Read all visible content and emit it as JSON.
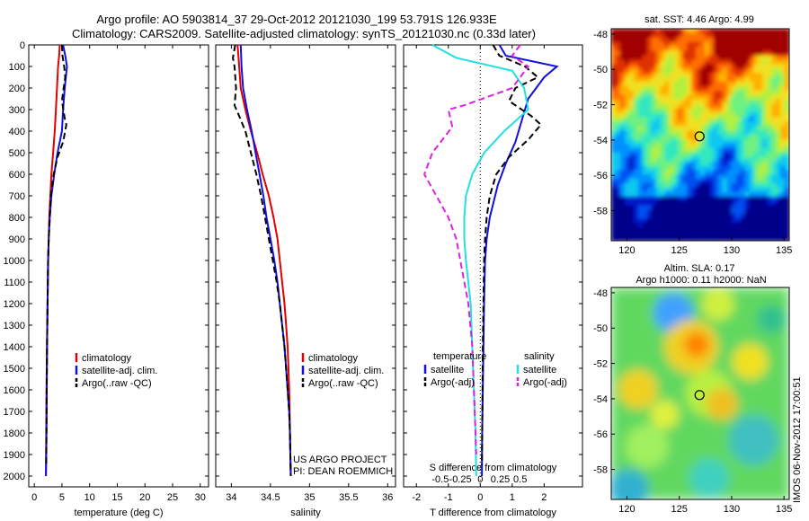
{
  "figure": {
    "title_line1": "Argo profile: AO 5903814_37 29-Oct-2012 20121030_199 53.791S 126.933E",
    "title_line2": "Climatology: CARS2009. Satellite-adjusted climatology: synTS_20121030.nc (0.33d later)",
    "side_label": "IMOS 06-Nov-2012 17:00:51",
    "project_line1": "US ARGO PROJECT",
    "project_line2": "PI: DEAN ROEMMICH"
  },
  "colors": {
    "climatology": "#e00000",
    "satellite": "#1010e0",
    "argo": "#000000",
    "sal_satellite": "#20e0e0",
    "sal_argo": "#e020e0"
  },
  "chart_data": [
    {
      "id": "temperature",
      "type": "line",
      "xlabel": "temperature (deg C)",
      "ylabel": "",
      "xlim": [
        -1,
        31.5
      ],
      "xticks": [
        0,
        5,
        10,
        15,
        20,
        25,
        30
      ],
      "ylim": [
        0,
        2050
      ],
      "yticks": [
        0,
        100,
        200,
        300,
        400,
        500,
        600,
        700,
        800,
        900,
        1000,
        1100,
        1200,
        1300,
        1400,
        1500,
        1600,
        1700,
        1800,
        1900,
        2000
      ],
      "legend": [
        "climatology",
        "satellite-adj. clim.",
        "Argo(..raw -QC)"
      ],
      "series": [
        {
          "name": "climatology",
          "style": "solid",
          "points": [
            [
              4.6,
              0
            ],
            [
              4.5,
              50
            ],
            [
              4.3,
              100
            ],
            [
              4.1,
              200
            ],
            [
              3.9,
              300
            ],
            [
              3.7,
              400
            ],
            [
              3.4,
              500
            ],
            [
              3.1,
              600
            ],
            [
              2.9,
              700
            ],
            [
              2.7,
              800
            ],
            [
              2.6,
              900
            ],
            [
              2.5,
              1000
            ],
            [
              2.4,
              1200
            ],
            [
              2.3,
              1400
            ],
            [
              2.2,
              1600
            ],
            [
              2.15,
              1800
            ],
            [
              2.1,
              2000
            ]
          ]
        },
        {
          "name": "satellite-adj. clim.",
          "style": "solid",
          "points": [
            [
              5.2,
              0
            ],
            [
              5.6,
              50
            ],
            [
              5.9,
              100
            ],
            [
              5.5,
              200
            ],
            [
              5.2,
              300
            ],
            [
              5.0,
              400
            ],
            [
              4.2,
              500
            ],
            [
              3.6,
              600
            ],
            [
              3.1,
              700
            ],
            [
              2.8,
              800
            ],
            [
              2.6,
              900
            ],
            [
              2.5,
              1000
            ],
            [
              2.4,
              1200
            ],
            [
              2.3,
              1400
            ],
            [
              2.25,
              1600
            ],
            [
              2.2,
              1800
            ],
            [
              2.1,
              2000
            ]
          ]
        },
        {
          "name": "Argo(..raw -QC)",
          "style": "dashed",
          "points": [
            [
              5.0,
              0
            ],
            [
              5.1,
              50
            ],
            [
              5.4,
              100
            ],
            [
              5.6,
              150
            ],
            [
              5.3,
              200
            ],
            [
              5.0,
              260
            ],
            [
              5.5,
              340
            ],
            [
              5.8,
              370
            ],
            [
              5.2,
              450
            ],
            [
              4.2,
              520
            ],
            [
              3.5,
              600
            ],
            [
              3.0,
              700
            ],
            [
              2.8,
              800
            ],
            [
              2.6,
              900
            ],
            [
              2.5,
              1000
            ],
            [
              2.4,
              1200
            ],
            [
              2.3,
              1400
            ],
            [
              2.25,
              1600
            ],
            [
              2.2,
              1800
            ],
            [
              2.15,
              1950
            ]
          ]
        }
      ]
    },
    {
      "id": "salinity",
      "type": "line",
      "xlabel": "salinity",
      "ylabel": "",
      "xlim": [
        33.8,
        36.1
      ],
      "xticks": [
        34,
        34.5,
        35,
        35.5,
        36
      ],
      "xtick_labels": [
        "34",
        "34.5",
        "35",
        "35.5",
        "36"
      ],
      "ylim": [
        0,
        2050
      ],
      "legend": [
        "climatology",
        "satellite-adj. clim.",
        "Argo(..raw -QC)"
      ],
      "series": [
        {
          "name": "climatology",
          "style": "solid",
          "points": [
            [
              34.08,
              0
            ],
            [
              34.1,
              100
            ],
            [
              34.12,
              200
            ],
            [
              34.18,
              300
            ],
            [
              34.25,
              400
            ],
            [
              34.33,
              500
            ],
            [
              34.4,
              600
            ],
            [
              34.48,
              700
            ],
            [
              34.54,
              800
            ],
            [
              34.59,
              900
            ],
            [
              34.62,
              1000
            ],
            [
              34.65,
              1100
            ],
            [
              34.68,
              1200
            ],
            [
              34.7,
              1300
            ],
            [
              34.72,
              1400
            ],
            [
              34.73,
              1500
            ],
            [
              34.74,
              1600
            ],
            [
              34.745,
              1700
            ],
            [
              34.75,
              1800
            ],
            [
              34.755,
              1900
            ],
            [
              34.76,
              2000
            ]
          ]
        },
        {
          "name": "satellite-adj. clim.",
          "style": "solid",
          "points": [
            [
              34.12,
              0
            ],
            [
              34.13,
              100
            ],
            [
              34.15,
              200
            ],
            [
              34.2,
              300
            ],
            [
              34.26,
              400
            ],
            [
              34.31,
              500
            ],
            [
              34.36,
              600
            ],
            [
              34.41,
              700
            ],
            [
              34.45,
              800
            ],
            [
              34.5,
              900
            ],
            [
              34.55,
              1000
            ],
            [
              34.59,
              1100
            ],
            [
              34.62,
              1200
            ],
            [
              34.65,
              1300
            ],
            [
              34.68,
              1400
            ],
            [
              34.7,
              1500
            ],
            [
              34.72,
              1600
            ],
            [
              34.74,
              1700
            ],
            [
              34.75,
              1800
            ],
            [
              34.755,
              1900
            ],
            [
              34.76,
              2000
            ]
          ]
        },
        {
          "name": "Argo(..raw -QC)",
          "style": "dashed",
          "points": [
            [
              34.05,
              0
            ],
            [
              34.02,
              60
            ],
            [
              34.04,
              100
            ],
            [
              34.06,
              200
            ],
            [
              34.04,
              280
            ],
            [
              34.1,
              330
            ],
            [
              34.18,
              400
            ],
            [
              34.25,
              500
            ],
            [
              34.32,
              600
            ],
            [
              34.38,
              700
            ],
            [
              34.43,
              800
            ],
            [
              34.48,
              900
            ],
            [
              34.53,
              1000
            ],
            [
              34.58,
              1100
            ],
            [
              34.62,
              1200
            ],
            [
              34.65,
              1300
            ],
            [
              34.68,
              1400
            ],
            [
              34.7,
              1500
            ],
            [
              34.72,
              1600
            ],
            [
              34.74,
              1700
            ],
            [
              34.75,
              1800
            ],
            [
              34.755,
              1900
            ],
            [
              34.76,
              2000
            ]
          ]
        }
      ]
    },
    {
      "id": "difference",
      "type": "line",
      "xlabel": "T difference from climatology",
      "x2label": "S difference from climatology",
      "xlim": [
        -2.4,
        3.2
      ],
      "xticks": [
        -2,
        -1,
        0,
        1,
        2
      ],
      "xtick_labels": [
        "-2",
        "-1",
        "0",
        "1",
        "2"
      ],
      "x2ticks": [
        -0.5,
        -0.25,
        0,
        0.25,
        0.5
      ],
      "x2tick_labels": [
        "-0.5",
        "-0.25",
        "0",
        "0.25",
        "0.5"
      ],
      "ylim": [
        0,
        2050
      ],
      "legend_headers": [
        "temperature",
        "salinity"
      ],
      "legend": [
        "satellite",
        "Argo(-adj)",
        "satellite",
        "Argo(-adj)"
      ],
      "series": [
        {
          "name": "satellite",
          "group": "temperature",
          "style": "solid",
          "points": [
            [
              0.6,
              0
            ],
            [
              0.8,
              50
            ],
            [
              2.4,
              100
            ],
            [
              2.0,
              150
            ],
            [
              1.5,
              250
            ],
            [
              1.3,
              350
            ],
            [
              1.1,
              450
            ],
            [
              0.8,
              550
            ],
            [
              0.55,
              650
            ],
            [
              0.3,
              800
            ],
            [
              0.2,
              900
            ],
            [
              0.15,
              1000
            ],
            [
              0.12,
              1200
            ],
            [
              0.1,
              1400
            ],
            [
              0.08,
              1600
            ],
            [
              0.06,
              1800
            ],
            [
              0.05,
              2000
            ]
          ]
        },
        {
          "name": "Argo(-adj)",
          "group": "temperature",
          "style": "dashed",
          "points": [
            [
              0.4,
              0
            ],
            [
              0.6,
              50
            ],
            [
              1.4,
              100
            ],
            [
              1.8,
              150
            ],
            [
              1.1,
              200
            ],
            [
              0.9,
              260
            ],
            [
              1.6,
              330
            ],
            [
              1.9,
              370
            ],
            [
              1.5,
              440
            ],
            [
              0.9,
              520
            ],
            [
              0.5,
              600
            ],
            [
              0.3,
              700
            ],
            [
              0.2,
              800
            ],
            [
              0.15,
              900
            ],
            [
              0.12,
              1000
            ],
            [
              0.1,
              1200
            ],
            [
              0.08,
              1400
            ],
            [
              0.07,
              1600
            ],
            [
              0.06,
              1800
            ],
            [
              0.05,
              1950
            ]
          ]
        },
        {
          "name": "satellite",
          "group": "salinity",
          "style": "solid",
          "points": [
            [
              -0.6,
              0
            ],
            [
              -0.3,
              60
            ],
            [
              0.4,
              120
            ],
            [
              0.55,
              200
            ],
            [
              0.6,
              300
            ],
            [
              0.3,
              400
            ],
            [
              0.05,
              500
            ],
            [
              -0.1,
              600
            ],
            [
              -0.18,
              700
            ],
            [
              -0.2,
              800
            ],
            [
              -0.2,
              900
            ],
            [
              -0.18,
              1000
            ],
            [
              -0.15,
              1100
            ],
            [
              -0.12,
              1200
            ],
            [
              -0.1,
              1400
            ],
            [
              -0.08,
              1600
            ],
            [
              -0.06,
              1800
            ],
            [
              -0.05,
              2000
            ]
          ]
        },
        {
          "name": "Argo(-adj)",
          "group": "salinity",
          "style": "dashed",
          "points": [
            [
              0.5,
              0
            ],
            [
              0.4,
              50
            ],
            [
              0.6,
              100
            ],
            [
              0.4,
              200
            ],
            [
              -0.2,
              280
            ],
            [
              -0.4,
              300
            ],
            [
              -0.35,
              380
            ],
            [
              -0.6,
              500
            ],
            [
              -0.7,
              600
            ],
            [
              -0.55,
              700
            ],
            [
              -0.4,
              800
            ],
            [
              -0.3,
              900
            ],
            [
              -0.25,
              1000
            ],
            [
              -0.15,
              1200
            ],
            [
              -0.1,
              1400
            ],
            [
              -0.08,
              1600
            ],
            [
              -0.06,
              1800
            ],
            [
              -0.05,
              1900
            ]
          ]
        }
      ]
    },
    {
      "id": "sst_map",
      "type": "heatmap",
      "title": "sat. SST: 4.46 Argo: 4.99",
      "xlim": [
        118.5,
        135.5
      ],
      "ylim": [
        -59.7,
        -47.7
      ],
      "xticks": [
        120,
        125,
        130,
        135
      ],
      "yticks": [
        -48,
        -50,
        -52,
        -54,
        -56,
        -58
      ],
      "marker": {
        "lon": 126.933,
        "lat": -53.791
      }
    },
    {
      "id": "sla_map",
      "type": "heatmap",
      "title": "Altim. SLA: 0.17",
      "subtitle": "Argo h1000: 0.11 h2000: NaN",
      "xlim": [
        118.5,
        135.5
      ],
      "ylim": [
        -59.7,
        -47.7
      ],
      "xticks": [
        120,
        125,
        130,
        135
      ],
      "yticks": [
        -48,
        -50,
        -52,
        -54,
        -56,
        -58
      ],
      "marker": {
        "lon": 126.933,
        "lat": -53.791
      }
    }
  ]
}
